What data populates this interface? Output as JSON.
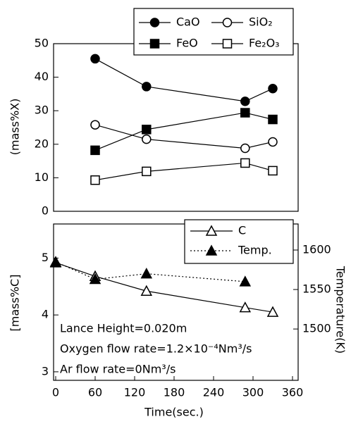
{
  "chart_data": [
    {
      "type": "line",
      "ylabel": "(mass%X)",
      "xlim": [
        0,
        360
      ],
      "ylim": [
        0,
        50
      ],
      "yticks": [
        0,
        10,
        20,
        30,
        40,
        50
      ],
      "series": [
        {
          "name": "CaO",
          "color": "#000000",
          "marker": "circle",
          "filled": true,
          "linestyle": "solid",
          "x": [
            60,
            138,
            288,
            330
          ],
          "values": [
            45.5,
            37.2,
            32.8,
            36.6
          ]
        },
        {
          "name": "SiO₂",
          "color": "#000000",
          "marker": "circle",
          "filled": false,
          "linestyle": "solid",
          "x": [
            60,
            138,
            288,
            330
          ],
          "values": [
            25.8,
            21.5,
            18.8,
            20.7
          ]
        },
        {
          "name": "FeO",
          "color": "#000000",
          "marker": "square",
          "filled": true,
          "linestyle": "solid",
          "x": [
            60,
            138,
            288,
            330
          ],
          "values": [
            18.2,
            24.4,
            29.4,
            27.4
          ]
        },
        {
          "name": "Fe₂O₃",
          "color": "#000000",
          "marker": "square",
          "filled": false,
          "linestyle": "solid",
          "x": [
            60,
            138,
            288,
            330
          ],
          "values": [
            9.3,
            11.9,
            14.4,
            12.1
          ]
        }
      ]
    },
    {
      "type": "line",
      "xlabel": "Time(sec.)",
      "ylabel": "[mass%C]",
      "y2label": "Temperature(K)",
      "xlim": [
        0,
        360
      ],
      "xticks": [
        0,
        60,
        120,
        180,
        240,
        300,
        360
      ],
      "ylim": [
        2.85,
        5.6
      ],
      "yticks": [
        3,
        4,
        5
      ],
      "y2lim": [
        1435,
        1633
      ],
      "y2ticks": [
        1500,
        1550,
        1600
      ],
      "annotations": [
        "Lance Height=0.020m",
        "Oxygen flow rate=1.2×10⁻⁴Nm³/s",
        "Ar flow rate=0Nm³/s"
      ],
      "series": [
        {
          "name": "C",
          "color": "#000000",
          "marker": "triangle",
          "filled": false,
          "linestyle": "solid",
          "axis": "y",
          "x": [
            0,
            60,
            138,
            288,
            330
          ],
          "values": [
            4.92,
            4.68,
            4.42,
            4.13,
            4.05
          ]
        },
        {
          "name": "Temp.",
          "color": "#000000",
          "marker": "triangle",
          "filled": true,
          "linestyle": "dotted",
          "axis": "y2",
          "x": [
            0,
            60,
            138,
            288
          ],
          "values": [
            1585,
            1563,
            1570,
            1560
          ]
        }
      ]
    }
  ]
}
